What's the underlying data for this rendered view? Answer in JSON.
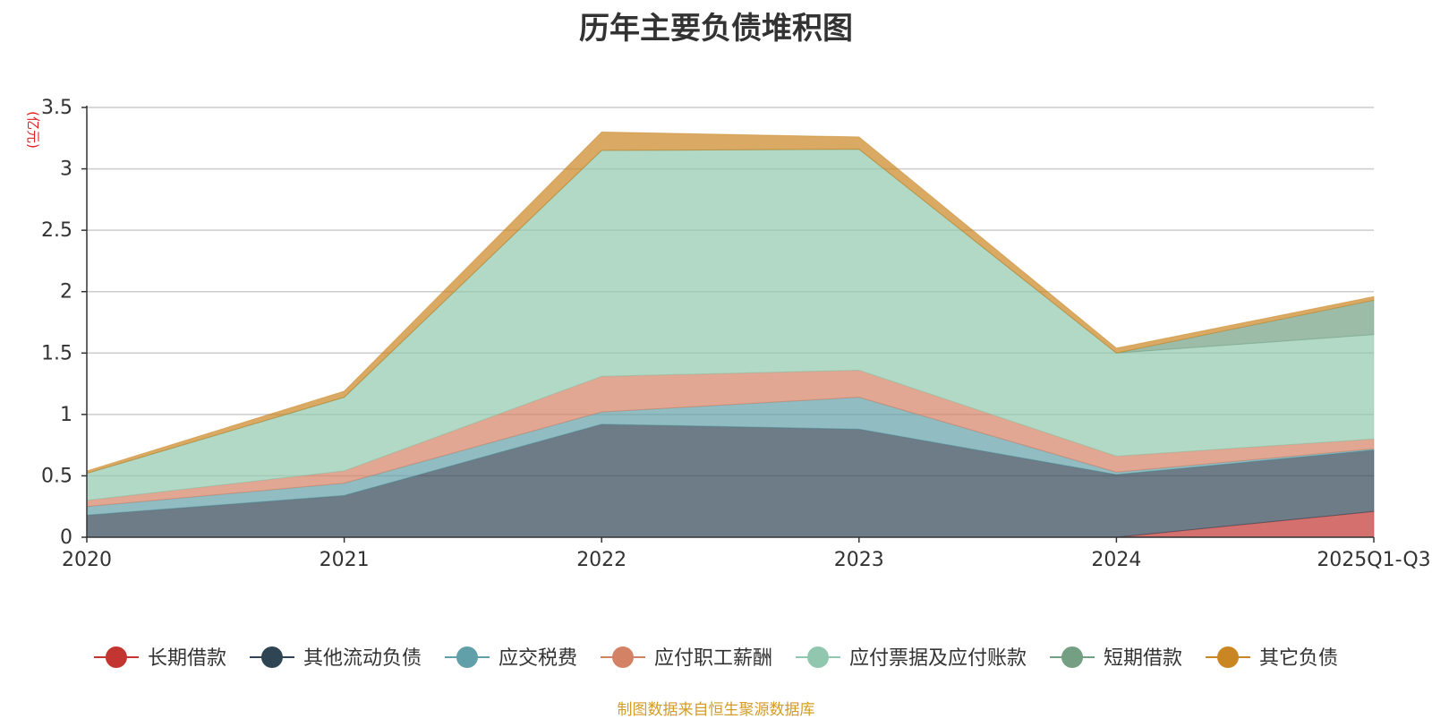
{
  "chart_data": {
    "type": "area",
    "stacked": true,
    "title": "历年主要负债堆积图",
    "unit_label": "(亿元)",
    "categories": [
      "2020",
      "2021",
      "2022",
      "2023",
      "2024",
      "2025Q1-Q3"
    ],
    "ylim": [
      0,
      3.5
    ],
    "yticks": [
      "0",
      "0.5",
      "1",
      "1.5",
      "2",
      "2.5",
      "3",
      "3.5"
    ],
    "grid": true,
    "legend_position": "bottom",
    "series": [
      {
        "name": "长期借款",
        "color": "#c23531",
        "values": [
          0,
          0,
          0,
          0,
          0,
          0.21
        ]
      },
      {
        "name": "其他流动负债",
        "color": "#2f4554",
        "values": [
          0.18,
          0.34,
          0.92,
          0.88,
          0.51,
          0.5
        ]
      },
      {
        "name": "应交税费",
        "color": "#61a0a8",
        "values": [
          0.07,
          0.1,
          0.1,
          0.26,
          0.02,
          0.01
        ]
      },
      {
        "name": "应付职工薪酬",
        "color": "#d48265",
        "values": [
          0.05,
          0.1,
          0.29,
          0.22,
          0.13,
          0.08
        ]
      },
      {
        "name": "应付票据及应付账款",
        "color": "#91c7ae",
        "values": [
          0.22,
          0.6,
          1.84,
          1.8,
          0.84,
          0.85
        ]
      },
      {
        "name": "短期借款",
        "color": "#749f83",
        "values": [
          0,
          0,
          0,
          0,
          0,
          0.28
        ]
      },
      {
        "name": "其它负债",
        "color": "#ca8622",
        "values": [
          0.02,
          0.05,
          0.15,
          0.1,
          0.04,
          0.03
        ]
      }
    ],
    "source_note": "制图数据来自恒生聚源数据库"
  }
}
